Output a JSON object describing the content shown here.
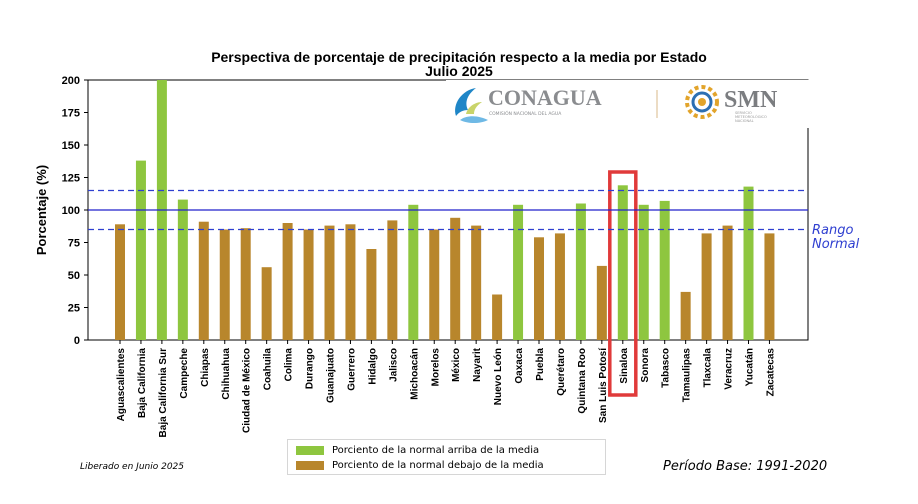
{
  "colors": {
    "above": "#8ec63f",
    "below": "#b8862c",
    "mean_line": "#2222cc",
    "range_line": "#2f3fd0",
    "highlight": "#e03a3a",
    "conagua_text": "#8a8c8f",
    "smn_text": "#7b7d80"
  },
  "footer": {
    "released": "Liberado en Junio 2025",
    "base_period": "Período Base: 1991-2020"
  },
  "logo": {
    "conagua_name": "CONAGUA",
    "conagua_sub": "COMISIÓN NACIONAL DEL AGUA",
    "smn_name": "SMN",
    "smn_sub_1": "SERVICIO",
    "smn_sub_2": "METEOROLÓGICO",
    "smn_sub_3": "NACIONAL"
  },
  "chart_data": {
    "type": "bar",
    "title": "Perspectiva de porcentaje de precipitación respecto a la media por Estado",
    "subtitle": "Julio 2025",
    "ylabel": "Porcentaje (%)",
    "xlabel": "",
    "ylim": [
      0,
      200
    ],
    "yticks": [
      "0",
      "25",
      "50",
      "75",
      "100",
      "125",
      "150",
      "175",
      "200"
    ],
    "grid": false,
    "legend_position": "bottom",
    "categories": [
      "Aguascalientes",
      "Baja California",
      "Baja California Sur",
      "Campeche",
      "Chiapas",
      "Chihuahua",
      "Ciudad de México",
      "Coahuila",
      "Colima",
      "Durango",
      "Guanajuato",
      "Guerrero",
      "Hidalgo",
      "Jalisco",
      "Michoacán",
      "Morelos",
      "México",
      "Nayarit",
      "Nuevo León",
      "Oaxaca",
      "Puebla",
      "Querétaro",
      "Quintana Roo",
      "San Luis Potosí",
      "Sinaloa",
      "Sonora",
      "Tabasco",
      "Tamaulipas",
      "Tlaxcala",
      "Veracruz",
      "Yucatán",
      "Zacatecas"
    ],
    "values": [
      89,
      138,
      200,
      108,
      91,
      85,
      86,
      56,
      90,
      85,
      88,
      89,
      70,
      92,
      104,
      85,
      94,
      88,
      35,
      104,
      79,
      82,
      105,
      57,
      119,
      104,
      107,
      37,
      82,
      88,
      118,
      82
    ],
    "groups": [
      "below",
      "above",
      "above",
      "above",
      "below",
      "below",
      "below",
      "below",
      "below",
      "below",
      "below",
      "below",
      "below",
      "below",
      "above",
      "below",
      "below",
      "below",
      "below",
      "above",
      "below",
      "below",
      "above",
      "below",
      "above",
      "above",
      "above",
      "below",
      "below",
      "below",
      "above",
      "below"
    ],
    "series": [
      {
        "name": "Porciento de la normal arriba de la media",
        "key": "above"
      },
      {
        "name": "Porciento de la normal debajo de la media",
        "key": "below"
      }
    ],
    "reference_lines": {
      "mean": 100,
      "normal_range": [
        85,
        115
      ]
    },
    "range_label_1": "Rango",
    "range_label_2": "Normal",
    "highlighted_category": "Sinaloa"
  }
}
